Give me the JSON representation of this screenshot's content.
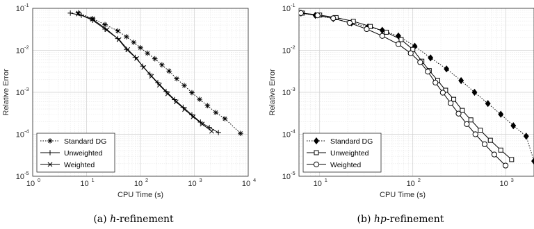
{
  "chart_data": [
    {
      "type": "line",
      "caption_label": "(a)",
      "caption_italic": "h",
      "caption_rest": "-refinement",
      "xlabel": "CPU Time (s)",
      "ylabel": "Relative Error",
      "xscale": "log",
      "yscale": "log",
      "xlim": [
        1,
        10000
      ],
      "ylim": [
        1e-05,
        0.1
      ],
      "xticks": [
        1,
        10,
        100,
        1000,
        10000
      ],
      "yticks": [
        1e-05,
        0.0001,
        0.001,
        0.01,
        0.1
      ],
      "grid": true,
      "legend_position": "bottom-left",
      "series": [
        {
          "name": "Standard DG",
          "style": "dotted",
          "marker": "asterisk",
          "x": [
            7,
            13,
            22,
            38,
            55,
            75,
            100,
            135,
            185,
            250,
            340,
            470,
            650,
            900,
            1250,
            1750,
            2500,
            3700,
            7200
          ],
          "y": [
            0.078,
            0.057,
            0.041,
            0.029,
            0.021,
            0.0155,
            0.0115,
            0.0085,
            0.0063,
            0.0045,
            0.0032,
            0.0021,
            0.00145,
            0.00098,
            0.00068,
            0.00048,
            0.00033,
            0.000235,
            0.000105
          ]
        },
        {
          "name": "Unweighted",
          "style": "solid",
          "marker": "plus",
          "x": [
            5,
            8,
            13,
            22,
            38,
            55,
            80,
            110,
            150,
            210,
            300,
            430,
            620,
            900,
            1300,
            1900,
            2800
          ],
          "y": [
            0.077,
            0.068,
            0.052,
            0.032,
            0.019,
            0.0105,
            0.0068,
            0.0042,
            0.0027,
            0.0017,
            0.00105,
            0.00067,
            0.00044,
            0.00029,
            0.000195,
            0.000145,
            0.00011
          ]
        },
        {
          "name": "Weighted",
          "style": "solid",
          "marker": "x",
          "x": [
            7,
            13,
            24,
            40,
            58,
            85,
            115,
            160,
            225,
            320,
            460,
            660,
            950,
            1400,
            2100
          ],
          "y": [
            0.073,
            0.055,
            0.031,
            0.018,
            0.0105,
            0.0064,
            0.0039,
            0.0024,
            0.00148,
            0.00092,
            0.00059,
            0.00039,
            0.00026,
            0.000175,
            0.000118
          ]
        }
      ]
    },
    {
      "type": "line",
      "caption_label": "(b)",
      "caption_italic": "hp",
      "caption_rest": "-refinement",
      "xlabel": "CPU Time (s)",
      "ylabel": "Relative Error",
      "xscale": "log",
      "yscale": "log",
      "xlim": [
        6,
        2000
      ],
      "ylim": [
        1e-05,
        0.1
      ],
      "xticks": [
        10,
        100,
        1000
      ],
      "yticks": [
        1e-05,
        0.0001,
        0.001,
        0.01,
        0.1
      ],
      "grid": true,
      "legend_position": "bottom-left",
      "series": [
        {
          "name": "Standard DG",
          "style": "dotted",
          "marker": "diamond",
          "x": [
            6.3,
            9,
            14,
            22,
            33,
            47,
            70,
            105,
            155,
            230,
            330,
            460,
            640,
            880,
            1200,
            1650,
            2000
          ],
          "y": [
            0.077,
            0.068,
            0.057,
            0.045,
            0.036,
            0.03,
            0.022,
            0.0125,
            0.0066,
            0.0036,
            0.0019,
            0.001,
            0.00054,
            0.0003,
            0.00016,
            9e-05,
            2.3e-05
          ]
        },
        {
          "name": "Unweighted",
          "style": "solid",
          "marker": "square",
          "x": [
            6.5,
            10,
            15,
            23,
            35,
            52,
            75,
            100,
            125,
            150,
            185,
            225,
            275,
            340,
            420,
            530,
            680,
            880,
            1150
          ],
          "y": [
            0.077,
            0.069,
            0.06,
            0.049,
            0.037,
            0.027,
            0.018,
            0.0105,
            0.0055,
            0.0033,
            0.0019,
            0.00112,
            0.00068,
            0.00037,
            0.00022,
            0.000125,
            7.2e-05,
            4.2e-05,
            2.5e-05
          ]
        },
        {
          "name": "Weighted",
          "style": "solid",
          "marker": "circle",
          "x": [
            6.3,
            9.5,
            14,
            21,
            32,
            47,
            70,
            95,
            120,
            145,
            175,
            210,
            255,
            310,
            380,
            470,
            590,
            750,
            990
          ],
          "y": [
            0.077,
            0.068,
            0.058,
            0.045,
            0.032,
            0.022,
            0.014,
            0.0085,
            0.0052,
            0.0031,
            0.0017,
            0.00098,
            0.00055,
            0.00031,
            0.000175,
            0.0001,
            5.8e-05,
            3.3e-05,
            1.8e-05
          ]
        }
      ]
    }
  ]
}
